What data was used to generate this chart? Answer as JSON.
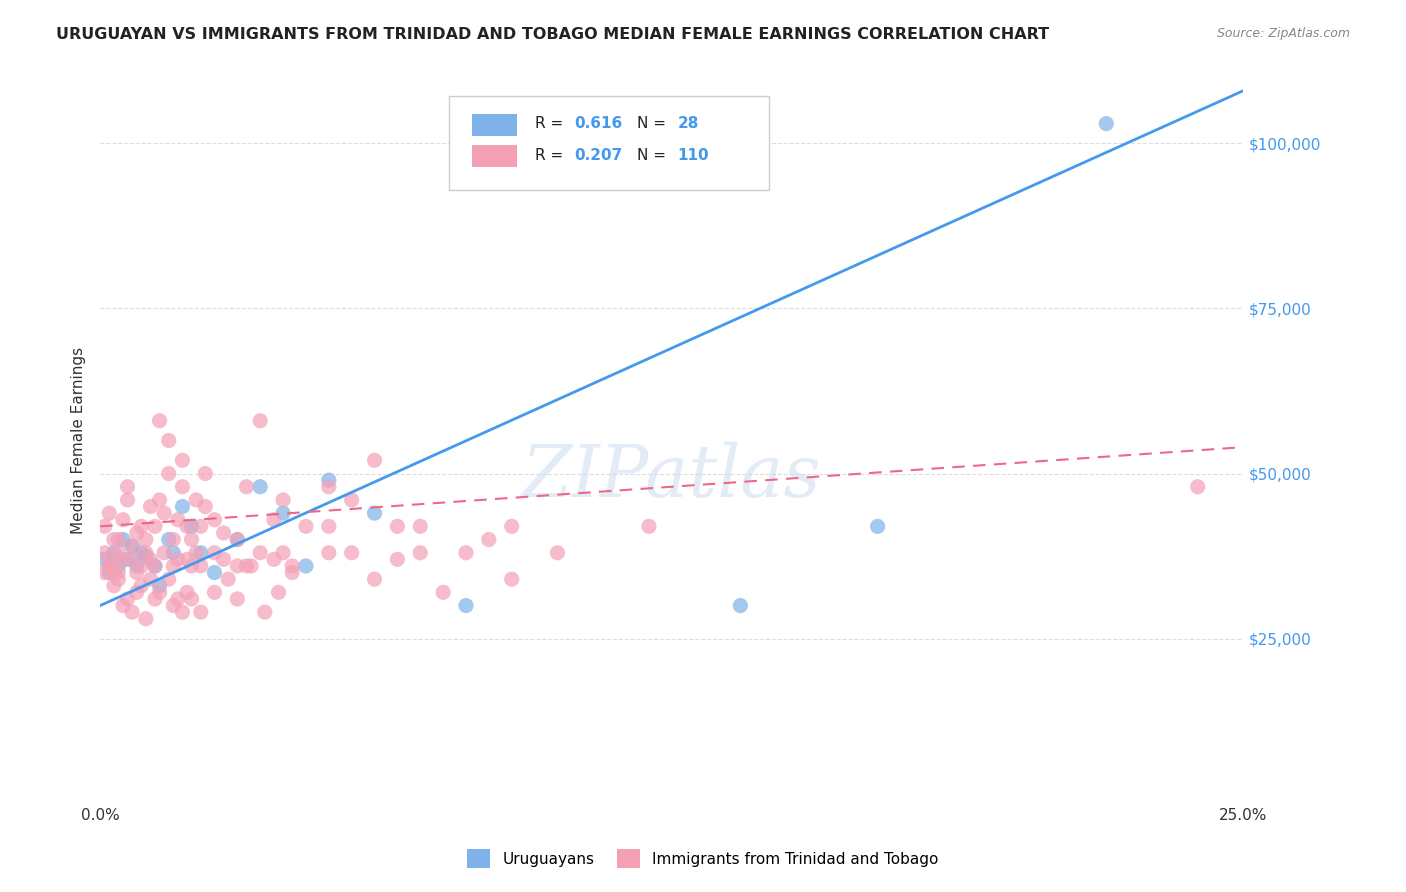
{
  "title": "URUGUAYAN VS IMMIGRANTS FROM TRINIDAD AND TOBAGO MEDIAN FEMALE EARNINGS CORRELATION CHART",
  "source": "Source: ZipAtlas.com",
  "ylabel": "Median Female Earnings",
  "xlabel": "",
  "xlim": [
    0.0,
    0.25
  ],
  "ylim": [
    0,
    110000
  ],
  "yticks": [
    0,
    25000,
    50000,
    75000,
    100000
  ],
  "xticks": [
    0.0,
    0.05,
    0.1,
    0.15,
    0.2,
    0.25
  ],
  "xtick_labels": [
    "0.0%",
    "",
    "",
    "",
    "",
    "25.0%"
  ],
  "ytick_labels": [
    "",
    "$25,000",
    "$50,000",
    "$75,000",
    "$100,000"
  ],
  "blue_color": "#7EB2E8",
  "pink_color": "#F4A0B5",
  "blue_line_color": "#4499EE",
  "pink_line_color": "#EE6688",
  "R_blue": 0.616,
  "N_blue": 28,
  "R_pink": 0.207,
  "N_pink": 110,
  "watermark": "ZIPatlas",
  "background_color": "#ffffff",
  "grid_color": "#dddddd",
  "blue_scatter_x": [
    0.001,
    0.002,
    0.003,
    0.004,
    0.005,
    0.006,
    0.007,
    0.008,
    0.009,
    0.01,
    0.012,
    0.013,
    0.015,
    0.016,
    0.018,
    0.02,
    0.022,
    0.025,
    0.03,
    0.035,
    0.04,
    0.045,
    0.05,
    0.06,
    0.08,
    0.14,
    0.17,
    0.22
  ],
  "blue_scatter_y": [
    37000,
    35000,
    38000,
    36000,
    40000,
    37000,
    39000,
    36000,
    38000,
    37500,
    36000,
    33000,
    40000,
    38000,
    45000,
    42000,
    38000,
    35000,
    40000,
    48000,
    44000,
    36000,
    49000,
    44000,
    30000,
    30000,
    42000,
    103000
  ],
  "pink_scatter_x": [
    0.001,
    0.001,
    0.002,
    0.002,
    0.003,
    0.003,
    0.004,
    0.004,
    0.005,
    0.005,
    0.006,
    0.006,
    0.007,
    0.007,
    0.008,
    0.008,
    0.009,
    0.009,
    0.01,
    0.01,
    0.011,
    0.011,
    0.012,
    0.012,
    0.013,
    0.013,
    0.014,
    0.014,
    0.015,
    0.015,
    0.016,
    0.016,
    0.017,
    0.017,
    0.018,
    0.018,
    0.019,
    0.019,
    0.02,
    0.02,
    0.021,
    0.021,
    0.022,
    0.022,
    0.023,
    0.023,
    0.025,
    0.025,
    0.027,
    0.027,
    0.03,
    0.03,
    0.032,
    0.032,
    0.035,
    0.035,
    0.038,
    0.038,
    0.04,
    0.04,
    0.042,
    0.045,
    0.05,
    0.05,
    0.055,
    0.06,
    0.065,
    0.07,
    0.08,
    0.09,
    0.001,
    0.002,
    0.003,
    0.003,
    0.004,
    0.004,
    0.005,
    0.006,
    0.007,
    0.008,
    0.009,
    0.01,
    0.011,
    0.012,
    0.013,
    0.015,
    0.016,
    0.017,
    0.018,
    0.019,
    0.02,
    0.022,
    0.025,
    0.028,
    0.03,
    0.033,
    0.036,
    0.039,
    0.042,
    0.05,
    0.055,
    0.06,
    0.065,
    0.07,
    0.075,
    0.085,
    0.09,
    0.1,
    0.12,
    0.24
  ],
  "pink_scatter_y": [
    38000,
    42000,
    36000,
    44000,
    37000,
    35000,
    40000,
    38000,
    37000,
    43000,
    46000,
    48000,
    37000,
    39000,
    35000,
    41000,
    42000,
    36000,
    38000,
    40000,
    37000,
    45000,
    36000,
    42000,
    46000,
    58000,
    38000,
    44000,
    50000,
    55000,
    36000,
    40000,
    37000,
    43000,
    48000,
    52000,
    37000,
    42000,
    36000,
    40000,
    38000,
    46000,
    36000,
    42000,
    45000,
    50000,
    38000,
    43000,
    37000,
    41000,
    36000,
    40000,
    48000,
    36000,
    58000,
    38000,
    43000,
    37000,
    46000,
    38000,
    36000,
    42000,
    48000,
    38000,
    46000,
    52000,
    37000,
    42000,
    38000,
    42000,
    35000,
    36000,
    33000,
    40000,
    34000,
    35000,
    30000,
    31000,
    29000,
    32000,
    33000,
    28000,
    34000,
    31000,
    32000,
    34000,
    30000,
    31000,
    29000,
    32000,
    31000,
    29000,
    32000,
    34000,
    31000,
    36000,
    29000,
    32000,
    35000,
    42000,
    38000,
    34000,
    42000,
    38000,
    32000,
    40000,
    34000,
    38000,
    42000,
    48000
  ]
}
